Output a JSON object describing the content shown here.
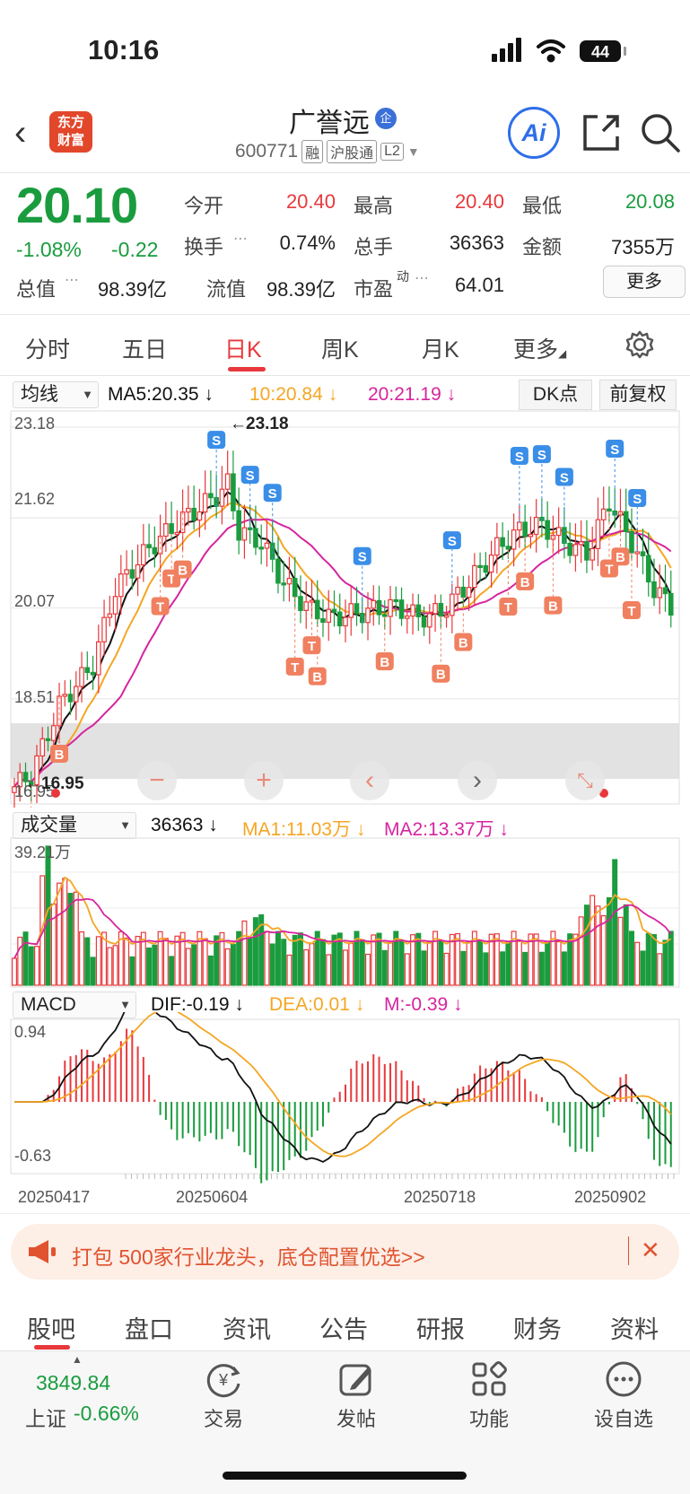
{
  "status": {
    "time": "10:16",
    "battery": "44"
  },
  "header": {
    "back_icon": "chevron-left-icon",
    "logo_line1": "东方",
    "logo_line2": "财富",
    "stock_name": "广誉远",
    "ent_badge": "企",
    "code": "600771",
    "tags": [
      "融",
      "沪股通",
      "L2"
    ],
    "ai_label": "Ai"
  },
  "quote": {
    "price": "20.10",
    "change_pct": "-1.08%",
    "change_abs": "-0.22",
    "open_label": "今开",
    "open": "20.40",
    "high_label": "最高",
    "high": "20.40",
    "low_label": "最低",
    "low": "20.08",
    "turnover_label": "换手",
    "turnover": "0.74%",
    "volume_label": "总手",
    "volume": "36363",
    "amount_label": "金额",
    "amount": "7355万",
    "mktcap_label": "总值",
    "mktcap": "98.39亿",
    "float_label": "流值",
    "float": "98.39亿",
    "pe_label": "市盈",
    "pe_sup": "动",
    "pe": "64.01",
    "more": "更多"
  },
  "period_tabs": [
    "分时",
    "五日",
    "日K",
    "周K",
    "月K",
    "更多"
  ],
  "active_period": "日K",
  "ma_row": {
    "selector": "均线",
    "ma5": "MA5:20.35",
    "ma10": "10:20.84",
    "ma20": "20:21.19",
    "dk": "DK点",
    "adjust": "前复权"
  },
  "vol_row": {
    "selector": "成交量",
    "vol": "36363",
    "ma1": "MA1:11.03万",
    "ma2": "MA2:13.37万"
  },
  "macd_row": {
    "selector": "MACD",
    "dif": "DIF:-0.19",
    "dea": "DEA:0.01",
    "m": "M:-0.39"
  },
  "colors": {
    "up": "#e8383b",
    "down": "#1a9c3e",
    "ma5": "#111111",
    "ma10": "#f5a623",
    "ma20": "#d6249f",
    "accent": "#e8383b"
  },
  "chart_data": {
    "type": "candlestick",
    "y_ticks": [
      "23.18",
      "21.62",
      "20.07",
      "18.51",
      "16.95"
    ],
    "max_label": "23.18",
    "min_label": "16.95",
    "vol_max_label": "39.21万",
    "macd_ticks": [
      "0.94",
      "-0.63"
    ],
    "dates": [
      "20250417",
      "20250604",
      "20250718",
      "20250902"
    ],
    "ylim": [
      16.95,
      23.18
    ]
  },
  "banner": {
    "icon": "megaphone-icon",
    "text": "打包 500家行业龙头，底仓配置优选>>"
  },
  "bottom_tabs": [
    "股吧",
    "盘口",
    "资讯",
    "公告",
    "研报",
    "财务",
    "资料"
  ],
  "footer": {
    "index_value": "3849.84",
    "index_name": "上证",
    "index_change": "-0.66%",
    "items": [
      "交易",
      "发帖",
      "功能",
      "设自选"
    ]
  }
}
